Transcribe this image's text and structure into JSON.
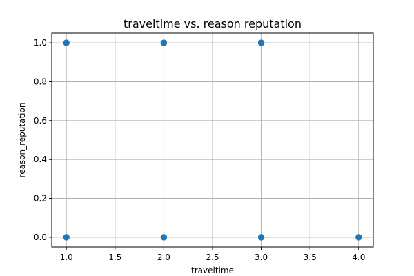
{
  "chart_data": {
    "type": "scatter",
    "title": "traveltime vs. reason reputation",
    "xlabel": "traveltime",
    "ylabel": "reason_reputation",
    "xlim": [
      0.85,
      4.15
    ],
    "ylim": [
      -0.05,
      1.05
    ],
    "xticks": [
      "1.0",
      "1.5",
      "2.0",
      "2.5",
      "3.0",
      "3.5",
      "4.0"
    ],
    "yticks": [
      "0.0",
      "0.2",
      "0.4",
      "0.6",
      "0.8",
      "1.0"
    ],
    "grid": true,
    "points": [
      {
        "x": 1,
        "y": 1
      },
      {
        "x": 2,
        "y": 1
      },
      {
        "x": 3,
        "y": 1
      },
      {
        "x": 1,
        "y": 0
      },
      {
        "x": 2,
        "y": 0
      },
      {
        "x": 3,
        "y": 0
      },
      {
        "x": 4,
        "y": 0
      }
    ],
    "marker_color": "#1f77b4"
  }
}
